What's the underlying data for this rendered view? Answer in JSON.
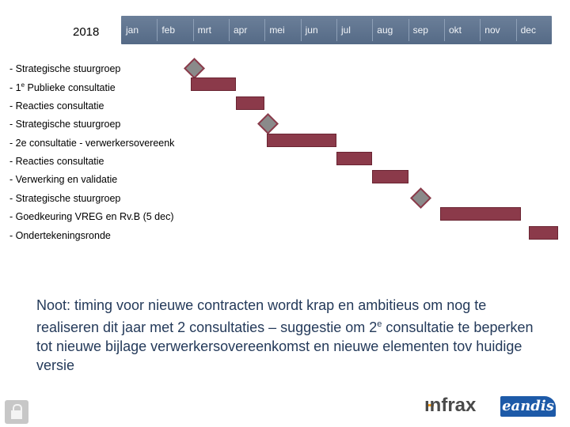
{
  "year": "2018",
  "months": [
    "jan",
    "feb",
    "mrt",
    "apr",
    "mei",
    "jun",
    "jul",
    "aug",
    "sep",
    "okt",
    "nov",
    "dec"
  ],
  "tasks": [
    {
      "label": "- Strategische stuurgroep",
      "type": "milestone",
      "start_month": 2.05
    },
    {
      "label_pre": "- 1",
      "label_sup": "e",
      "label_post": " Publieke consultatie",
      "type": "bar",
      "start_month": 1.95,
      "end_month": 3.2
    },
    {
      "label": "- Reacties consultatie",
      "type": "bar",
      "start_month": 3.2,
      "end_month": 4.0
    },
    {
      "label": "- Strategische stuurgroep",
      "type": "milestone",
      "start_month": 4.1
    },
    {
      "label": "- 2e consultatie - verwerkersovereenk",
      "type": "bar",
      "start_month": 4.05,
      "end_month": 6.0
    },
    {
      "label": "- Reacties consultatie",
      "type": "bar",
      "start_month": 6.0,
      "end_month": 7.0
    },
    {
      "label": "- Verwerking en validatie",
      "type": "bar",
      "start_month": 7.0,
      "end_month": 8.0
    },
    {
      "label": "- Strategische stuurgroep",
      "type": "milestone",
      "start_month": 8.35
    },
    {
      "label": "- Goedkeuring VREG en Rv.B (5 dec)",
      "type": "bar",
      "start_month": 8.9,
      "end_month": 11.15
    },
    {
      "label": "- Ondertekeningsronde",
      "type": "bar",
      "start_month": 11.35,
      "end_month": 12.3
    }
  ],
  "note": {
    "pre": "Noot: timing voor nieuwe contracten wordt krap en ambitieus om nog te realiseren dit jaar met 2 consultaties – suggestie om 2",
    "sup": "e",
    "post": " consultatie te beperken tot nieuwe bijlage verwerkersovereenkomst en nieuwe elementen tov huidige versie"
  },
  "logos": {
    "infrax": "ınfrax",
    "eandis": "eandis"
  },
  "icons": {
    "lock": "lock-icon"
  },
  "colors": {
    "bar": "#8b3a4a",
    "milestone": "#8a8a8a",
    "header": "#5f7390",
    "note": "#243a5a"
  }
}
